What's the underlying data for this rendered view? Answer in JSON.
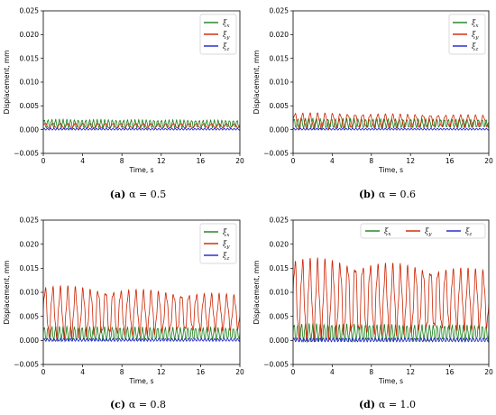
{
  "chart_data": [
    {
      "type": "line",
      "caption_letter": "(a)",
      "caption_text": "α = 0.5",
      "xlabel": "Time, s",
      "ylabel": "Displacement, mm",
      "xlim": [
        0,
        20
      ],
      "ylim": [
        -0.005,
        0.025
      ],
      "xticks": [
        0,
        4,
        8,
        12,
        16,
        20
      ],
      "yticks": [
        "−0.005",
        "0.000",
        "0.005",
        "0.010",
        "0.015",
        "0.020",
        "0.025"
      ],
      "ytick_values": [
        -0.005,
        0,
        0.005,
        0.01,
        0.015,
        0.02,
        0.025
      ],
      "legend_position": "top-right",
      "legend_layout": "column",
      "series": [
        {
          "name": "ξx",
          "label_base": "ξ",
          "label_sub": "x",
          "color": "#1a7f1a",
          "center": 0.0012,
          "amplitude": 0.001,
          "cycles_per_s": 2.6,
          "decay": 0.2
        },
        {
          "name": "ξy",
          "label_base": "ξ",
          "label_sub": "y",
          "color": "#cc2200",
          "center": 0.0008,
          "amplitude": 0.0006,
          "cycles_per_s": 1.3,
          "decay": 0.2
        },
        {
          "name": "ξz",
          "label_base": "ξ",
          "label_sub": "z",
          "color": "#1f1fd0",
          "center": 0.0001,
          "amplitude": 0.0002,
          "cycles_per_s": 3.0,
          "decay": 0.0
        }
      ]
    },
    {
      "type": "line",
      "caption_letter": "(b)",
      "caption_text": "α = 0.6",
      "xlabel": "Time, s",
      "ylabel": "Displacement, mm",
      "xlim": [
        0,
        20
      ],
      "ylim": [
        -0.005,
        0.025
      ],
      "xticks": [
        0,
        4,
        8,
        12,
        16,
        20
      ],
      "yticks": [
        "−0.005",
        "0.000",
        "0.005",
        "0.010",
        "0.015",
        "0.020",
        "0.025"
      ],
      "ytick_values": [
        -0.005,
        0,
        0.005,
        0.01,
        0.015,
        0.02,
        0.025
      ],
      "legend_position": "top-right",
      "legend_layout": "column",
      "series": [
        {
          "name": "ξx",
          "label_base": "ξ",
          "label_sub": "x",
          "color": "#1a7f1a",
          "center": 0.0013,
          "amplitude": 0.0011,
          "cycles_per_s": 2.6,
          "decay": 0.2
        },
        {
          "name": "ξy",
          "label_base": "ξ",
          "label_sub": "y",
          "color": "#cc2200",
          "center": 0.0018,
          "amplitude": 0.0018,
          "cycles_per_s": 1.3,
          "decay": 0.3
        },
        {
          "name": "ξz",
          "label_base": "ξ",
          "label_sub": "z",
          "color": "#1f1fd0",
          "center": 0.0001,
          "amplitude": 0.0002,
          "cycles_per_s": 3.0,
          "decay": 0.0
        }
      ]
    },
    {
      "type": "line",
      "caption_letter": "(c)",
      "caption_text": "α = 0.8",
      "xlabel": "Time, s",
      "ylabel": "Displacement, mm",
      "xlim": [
        0,
        20
      ],
      "ylim": [
        -0.005,
        0.025
      ],
      "xticks": [
        0,
        4,
        8,
        12,
        16,
        20
      ],
      "yticks": [
        "−0.005",
        "0.000",
        "0.005",
        "0.010",
        "0.015",
        "0.020",
        "0.025"
      ],
      "ytick_values": [
        -0.005,
        0,
        0.005,
        0.01,
        0.015,
        0.02,
        0.025
      ],
      "legend_position": "top-right",
      "legend_layout": "column",
      "series": [
        {
          "name": "ξx",
          "label_base": "ξ",
          "label_sub": "x",
          "color": "#1a7f1a",
          "center": 0.0014,
          "amplitude": 0.0016,
          "cycles_per_s": 2.6,
          "decay": 0.2
        },
        {
          "name": "ξy",
          "label_base": "ξ",
          "label_sub": "y",
          "color": "#cc2200",
          "center": 0.0058,
          "amplitude": 0.0058,
          "cycles_per_s": 1.3,
          "decay": 0.35
        },
        {
          "name": "ξz",
          "label_base": "ξ",
          "label_sub": "z",
          "color": "#1f1fd0",
          "center": 0.0001,
          "amplitude": 0.0003,
          "cycles_per_s": 3.0,
          "decay": 0.0
        }
      ]
    },
    {
      "type": "line",
      "caption_letter": "(d)",
      "caption_text": "α = 1.0",
      "xlabel": "Time, s",
      "ylabel": "Displacement, mm",
      "xlim": [
        0,
        20
      ],
      "ylim": [
        -0.005,
        0.025
      ],
      "xticks": [
        0,
        4,
        8,
        12,
        16,
        20
      ],
      "yticks": [
        "−0.005",
        "0.000",
        "0.005",
        "0.010",
        "0.015",
        "0.020",
        "0.025"
      ],
      "ytick_values": [
        -0.005,
        0,
        0.005,
        0.01,
        0.015,
        0.02,
        0.025
      ],
      "legend_position": "top-right",
      "legend_layout": "row",
      "series": [
        {
          "name": "ξx",
          "label_base": "ξ",
          "label_sub": "x",
          "color": "#1a7f1a",
          "center": 0.0016,
          "amplitude": 0.002,
          "cycles_per_s": 2.6,
          "decay": 0.2
        },
        {
          "name": "ξy",
          "label_base": "ξ",
          "label_sub": "y",
          "color": "#cc2200",
          "center": 0.0085,
          "amplitude": 0.009,
          "cycles_per_s": 1.3,
          "decay": 0.3
        },
        {
          "name": "ξz",
          "label_base": "ξ",
          "label_sub": "z",
          "color": "#1f1fd0",
          "center": 0.0001,
          "amplitude": 0.0004,
          "cycles_per_s": 3.0,
          "decay": 0.0
        }
      ]
    }
  ]
}
